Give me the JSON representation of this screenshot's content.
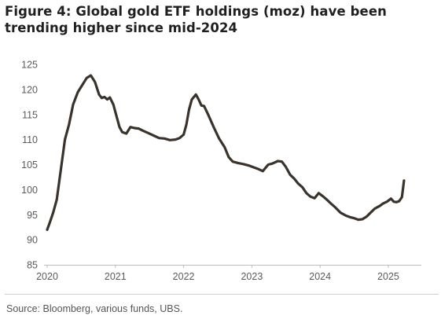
{
  "chart_data": {
    "type": "line",
    "title_lines": [
      "Figure 4: Global gold ETF holdings (moz) have been",
      "trending higher since mid-2024"
    ],
    "xlabel": "",
    "ylabel": "",
    "x_ticks": [
      "2020",
      "2021",
      "2022",
      "2023",
      "2024",
      "2025"
    ],
    "y_ticks": [
      85,
      90,
      95,
      100,
      105,
      110,
      115,
      120,
      125
    ],
    "xlim": [
      2020.0,
      2025.3
    ],
    "ylim": [
      85,
      125
    ],
    "grid": false,
    "legend": "none",
    "series": [
      {
        "color": "#3a332c",
        "x": [
          2020.0,
          2020.04,
          2020.09,
          2020.14,
          2020.2,
          2020.26,
          2020.32,
          2020.38,
          2020.45,
          2020.52,
          2020.58,
          2020.64,
          2020.7,
          2020.76,
          2020.8,
          2020.84,
          2020.88,
          2020.92,
          2020.97,
          2021.02,
          2021.06,
          2021.1,
          2021.16,
          2021.22,
          2021.28,
          2021.34,
          2021.4,
          2021.48,
          2021.56,
          2021.64,
          2021.72,
          2021.8,
          2021.88,
          2021.94,
          2022.0,
          2022.04,
          2022.08,
          2022.12,
          2022.18,
          2022.22,
          2022.26,
          2022.3,
          2022.36,
          2022.44,
          2022.52,
          2022.6,
          2022.66,
          2022.72,
          2022.8,
          2022.88,
          2022.96,
          2023.0,
          2023.08,
          2023.16,
          2023.24,
          2023.3,
          2023.38,
          2023.44,
          2023.5,
          2023.56,
          2023.62,
          2023.68,
          2023.74,
          2023.8,
          2023.86,
          2023.92,
          2023.98,
          2024.04,
          2024.1,
          2024.16,
          2024.22,
          2024.3,
          2024.38,
          2024.44,
          2024.5,
          2024.56,
          2024.62,
          2024.68,
          2024.74,
          2024.8,
          2024.84,
          2024.88,
          2024.92,
          2024.98,
          2025.04,
          2025.08,
          2025.12,
          2025.16,
          2025.2,
          2025.23
        ],
        "y": [
          92.0,
          93.5,
          95.5,
          98.0,
          104.0,
          110.0,
          113.0,
          117.0,
          119.5,
          121.0,
          122.3,
          122.8,
          121.5,
          119.0,
          118.3,
          118.5,
          118.0,
          118.4,
          117.0,
          114.5,
          112.5,
          111.5,
          111.2,
          112.5,
          112.3,
          112.2,
          111.8,
          111.3,
          110.8,
          110.3,
          110.2,
          109.9,
          110.0,
          110.3,
          111.0,
          113.0,
          116.0,
          118.0,
          119.0,
          118.0,
          116.8,
          116.7,
          115.0,
          112.5,
          110.2,
          108.5,
          106.5,
          105.6,
          105.3,
          105.1,
          104.8,
          104.6,
          104.2,
          103.7,
          105.0,
          105.2,
          105.7,
          105.6,
          104.5,
          103.0,
          102.2,
          101.2,
          100.5,
          99.3,
          98.6,
          98.3,
          99.3,
          98.7,
          98.0,
          97.2,
          96.5,
          95.4,
          94.8,
          94.5,
          94.3,
          94.0,
          94.1,
          94.6,
          95.4,
          96.2,
          96.5,
          96.8,
          97.2,
          97.6,
          98.2,
          97.6,
          97.5,
          97.7,
          98.5,
          101.8
        ]
      }
    ]
  },
  "source": "Source: Bloomberg, various funds, UBS."
}
